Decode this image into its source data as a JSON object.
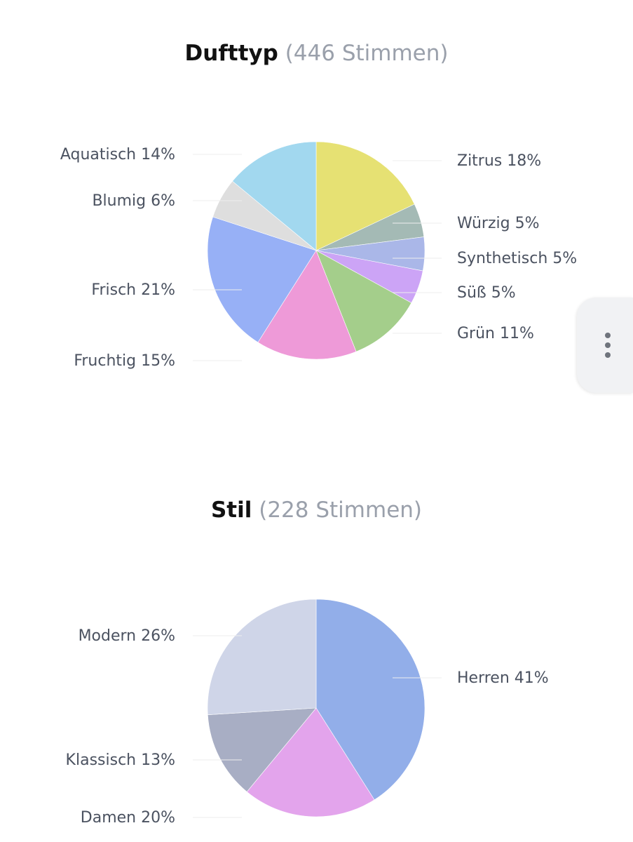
{
  "charts": [
    {
      "title": "Dufttyp",
      "votes_label": "(446 Stimmen)"
    },
    {
      "title": "Stil",
      "votes_label": "(228 Stimmen)"
    }
  ],
  "chart_data": [
    {
      "type": "pie",
      "title": "Dufttyp (446 Stimmen)",
      "slices": [
        {
          "label": "Zitrus",
          "value": 18,
          "display": "Zitrus 18%",
          "color": "#e6e173"
        },
        {
          "label": "Würzig",
          "value": 5,
          "display": "Würzig 5%",
          "color": "#a4bab5"
        },
        {
          "label": "Synthetisch",
          "value": 5,
          "display": "Synthetisch 5%",
          "color": "#aab7e8"
        },
        {
          "label": "Süß",
          "value": 5,
          "display": "Süß 5%",
          "color": "#cca4f6"
        },
        {
          "label": "Grün",
          "value": 11,
          "display": "Grün 11%",
          "color": "#a4ce8b"
        },
        {
          "label": "Fruchtig",
          "value": 15,
          "display": "Fruchtig 15%",
          "color": "#ee9ad8"
        },
        {
          "label": "Frisch",
          "value": 21,
          "display": "Frisch 21%",
          "color": "#97b0f6"
        },
        {
          "label": "Blumig",
          "value": 6,
          "display": "Blumig 6%",
          "color": "#dedede"
        },
        {
          "label": "Aquatisch",
          "value": 14,
          "display": "Aquatisch 14%",
          "color": "#a2d8ef"
        }
      ]
    },
    {
      "type": "pie",
      "title": "Stil (228 Stimmen)",
      "slices": [
        {
          "label": "Herren",
          "value": 41,
          "display": "Herren 41%",
          "color": "#92aee9"
        },
        {
          "label": "Damen",
          "value": 20,
          "display": "Damen 20%",
          "color": "#e3a4ec"
        },
        {
          "label": "Klassisch",
          "value": 13,
          "display": "Klassisch 13%",
          "color": "#a8aec4"
        },
        {
          "label": "Modern",
          "value": 26,
          "display": "Modern 26%",
          "color": "#cfd5e8"
        }
      ]
    }
  ],
  "more_menu": {
    "icon": "vertical-ellipsis-icon"
  }
}
